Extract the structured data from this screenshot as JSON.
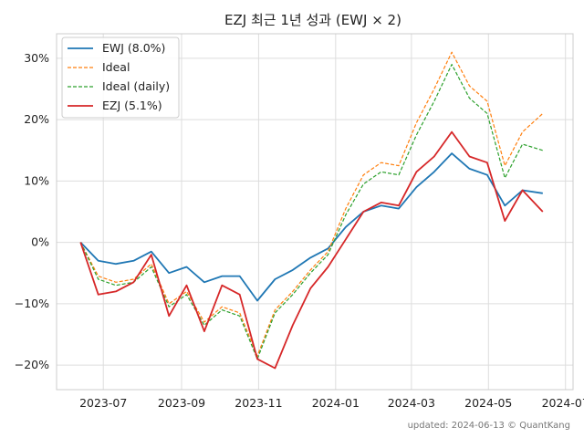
{
  "chart_data": {
    "type": "line",
    "title": "EZJ 최근 1년 성과 (EWJ × 2)",
    "xlabel": "",
    "ylabel": "",
    "ylim": [
      -24,
      34
    ],
    "x_ticks": [
      "2023-07",
      "2023-09",
      "2023-11",
      "2024-01",
      "2024-03",
      "2024-05",
      "2024-07"
    ],
    "y_ticks": [
      {
        "value": 30,
        "label": "30%"
      },
      {
        "value": 20,
        "label": "20%"
      },
      {
        "value": 10,
        "label": "10%"
      },
      {
        "value": 0,
        "label": "0%"
      },
      {
        "value": -10,
        "label": "−10%"
      },
      {
        "value": -20,
        "label": "−20%"
      }
    ],
    "grid": true,
    "legend_position": "top-left",
    "x_start": "2023-06-13",
    "x_end": "2024-06-13",
    "series": [
      {
        "name": "EWJ (8.0%)",
        "color": "#1f77b4",
        "dash": "",
        "points": [
          [
            "2023-06-13",
            0
          ],
          [
            "2023-06-27",
            -3
          ],
          [
            "2023-07-11",
            -3.5
          ],
          [
            "2023-07-25",
            -3
          ],
          [
            "2023-08-08",
            -1.5
          ],
          [
            "2023-08-22",
            -5
          ],
          [
            "2023-09-05",
            -4
          ],
          [
            "2023-09-19",
            -6.5
          ],
          [
            "2023-10-03",
            -5.5
          ],
          [
            "2023-10-17",
            -5.5
          ],
          [
            "2023-10-31",
            -9.5
          ],
          [
            "2023-11-14",
            -6
          ],
          [
            "2023-11-28",
            -4.5
          ],
          [
            "2023-12-12",
            -2.5
          ],
          [
            "2023-12-26",
            -1
          ],
          [
            "2024-01-09",
            2.5
          ],
          [
            "2024-01-23",
            5
          ],
          [
            "2024-02-06",
            6
          ],
          [
            "2024-02-20",
            5.5
          ],
          [
            "2024-03-05",
            9
          ],
          [
            "2024-03-19",
            11.5
          ],
          [
            "2024-04-02",
            14.5
          ],
          [
            "2024-04-16",
            12
          ],
          [
            "2024-04-30",
            11
          ],
          [
            "2024-05-14",
            6
          ],
          [
            "2024-05-28",
            8.5
          ],
          [
            "2024-06-13",
            8
          ]
        ]
      },
      {
        "name": "Ideal",
        "color": "#ff7f0e",
        "dash": "4 2",
        "points": [
          [
            "2023-06-13",
            0
          ],
          [
            "2023-06-27",
            -5.5
          ],
          [
            "2023-07-11",
            -6.5
          ],
          [
            "2023-07-25",
            -6
          ],
          [
            "2023-08-08",
            -3.5
          ],
          [
            "2023-08-22",
            -10
          ],
          [
            "2023-09-05",
            -8
          ],
          [
            "2023-09-19",
            -13
          ],
          [
            "2023-10-03",
            -10.5
          ],
          [
            "2023-10-17",
            -11.5
          ],
          [
            "2023-10-31",
            -18.5
          ],
          [
            "2023-11-14",
            -11
          ],
          [
            "2023-11-28",
            -8
          ],
          [
            "2023-12-12",
            -4.5
          ],
          [
            "2023-12-26",
            -1.5
          ],
          [
            "2024-01-09",
            5.5
          ],
          [
            "2024-01-23",
            11
          ],
          [
            "2024-02-06",
            13
          ],
          [
            "2024-02-20",
            12.5
          ],
          [
            "2024-03-05",
            19.5
          ],
          [
            "2024-03-19",
            25
          ],
          [
            "2024-04-02",
            31
          ],
          [
            "2024-04-16",
            25.5
          ],
          [
            "2024-04-30",
            23
          ],
          [
            "2024-05-14",
            12.5
          ],
          [
            "2024-05-28",
            18
          ],
          [
            "2024-06-13",
            21
          ]
        ]
      },
      {
        "name": "Ideal (daily)",
        "color": "#2ca02c",
        "dash": "4 2",
        "points": [
          [
            "2023-06-13",
            0
          ],
          [
            "2023-06-27",
            -6
          ],
          [
            "2023-07-11",
            -7
          ],
          [
            "2023-07-25",
            -6.5
          ],
          [
            "2023-08-08",
            -4
          ],
          [
            "2023-08-22",
            -10.5
          ],
          [
            "2023-09-05",
            -8.5
          ],
          [
            "2023-09-19",
            -13.5
          ],
          [
            "2023-10-03",
            -11
          ],
          [
            "2023-10-17",
            -12
          ],
          [
            "2023-10-31",
            -19
          ],
          [
            "2023-11-14",
            -11.5
          ],
          [
            "2023-11-28",
            -8.5
          ],
          [
            "2023-12-12",
            -5
          ],
          [
            "2023-12-26",
            -2
          ],
          [
            "2024-01-09",
            4.5
          ],
          [
            "2024-01-23",
            9.5
          ],
          [
            "2024-02-06",
            11.5
          ],
          [
            "2024-02-20",
            11
          ],
          [
            "2024-03-05",
            17.5
          ],
          [
            "2024-03-19",
            23
          ],
          [
            "2024-04-02",
            29
          ],
          [
            "2024-04-16",
            23.5
          ],
          [
            "2024-04-30",
            21
          ],
          [
            "2024-05-14",
            10.5
          ],
          [
            "2024-05-28",
            16
          ],
          [
            "2024-06-13",
            15
          ]
        ]
      },
      {
        "name": "EZJ (5.1%)",
        "color": "#d62728",
        "dash": "",
        "points": [
          [
            "2023-06-13",
            0
          ],
          [
            "2023-06-27",
            -8.5
          ],
          [
            "2023-07-11",
            -8
          ],
          [
            "2023-07-25",
            -6.5
          ],
          [
            "2023-08-08",
            -2
          ],
          [
            "2023-08-22",
            -12
          ],
          [
            "2023-09-05",
            -7
          ],
          [
            "2023-09-19",
            -14.5
          ],
          [
            "2023-10-03",
            -7
          ],
          [
            "2023-10-17",
            -8.5
          ],
          [
            "2023-10-31",
            -19
          ],
          [
            "2023-11-14",
            -20.5
          ],
          [
            "2023-11-28",
            -13.5
          ],
          [
            "2023-12-12",
            -7.5
          ],
          [
            "2023-12-26",
            -4
          ],
          [
            "2024-01-09",
            0.5
          ],
          [
            "2024-01-23",
            5
          ],
          [
            "2024-02-06",
            6.5
          ],
          [
            "2024-02-20",
            6
          ],
          [
            "2024-03-05",
            11.5
          ],
          [
            "2024-03-19",
            14
          ],
          [
            "2024-04-02",
            18
          ],
          [
            "2024-04-16",
            14
          ],
          [
            "2024-04-30",
            13
          ],
          [
            "2024-05-14",
            3.5
          ],
          [
            "2024-05-28",
            8.5
          ],
          [
            "2024-06-13",
            5
          ]
        ]
      }
    ]
  },
  "footer": "updated: 2024-06-13 © QuantKang"
}
